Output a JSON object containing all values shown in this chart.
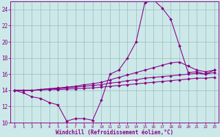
{
  "xlabel": "Windchill (Refroidissement éolien,°C)",
  "background_color": "#cce8e8",
  "line_color": "#880088",
  "grid_color": "#99bbbb",
  "xlim_min": -0.5,
  "xlim_max": 23.5,
  "ylim_min": 10,
  "ylim_max": 25,
  "yticks": [
    10,
    12,
    14,
    16,
    18,
    20,
    22,
    24
  ],
  "xticks": [
    0,
    1,
    2,
    3,
    4,
    5,
    6,
    7,
    8,
    9,
    10,
    11,
    12,
    13,
    14,
    15,
    16,
    17,
    18,
    19,
    20,
    21,
    22,
    23
  ],
  "curve_main_x": [
    0,
    1,
    2,
    3,
    4,
    5,
    6,
    7,
    8,
    9,
    10,
    11,
    12,
    13,
    14,
    15,
    16,
    17,
    18,
    19,
    20,
    21,
    22,
    23
  ],
  "curve_main_y": [
    14.0,
    13.7,
    13.2,
    13.0,
    12.5,
    12.2,
    10.2,
    10.5,
    10.5,
    10.3,
    12.8,
    16.0,
    16.5,
    18.0,
    20.0,
    24.8,
    25.2,
    24.2,
    22.8,
    19.5,
    16.2,
    16.3,
    16.0,
    16.5
  ],
  "curve_hi_x": [
    0,
    2,
    3,
    4,
    5,
    6,
    7,
    8,
    9,
    10,
    11,
    12,
    13,
    14,
    15,
    16,
    17,
    18,
    19,
    20,
    21,
    22,
    23
  ],
  "curve_hi_y": [
    14.0,
    14.0,
    14.1,
    14.2,
    14.3,
    14.4,
    14.5,
    14.7,
    14.8,
    15.0,
    15.3,
    15.6,
    15.9,
    16.2,
    16.5,
    16.8,
    17.1,
    17.4,
    17.5,
    17.0,
    16.5,
    16.3,
    16.5
  ],
  "curve_mid_x": [
    0,
    1,
    2,
    3,
    4,
    5,
    6,
    7,
    8,
    9,
    10,
    11,
    12,
    13,
    14,
    15,
    16,
    17,
    18,
    19,
    20,
    21,
    22,
    23
  ],
  "curve_mid_y": [
    14.0,
    14.0,
    14.0,
    14.1,
    14.2,
    14.2,
    14.3,
    14.4,
    14.5,
    14.6,
    14.7,
    14.9,
    15.0,
    15.2,
    15.3,
    15.5,
    15.6,
    15.7,
    15.8,
    15.9,
    16.0,
    16.1,
    16.0,
    16.2
  ],
  "curve_lo_x": [
    0,
    1,
    2,
    3,
    4,
    5,
    6,
    7,
    8,
    9,
    10,
    11,
    12,
    13,
    14,
    15,
    16,
    17,
    18,
    19,
    20,
    21,
    22,
    23
  ],
  "curve_lo_y": [
    14.0,
    14.0,
    14.0,
    14.05,
    14.1,
    14.1,
    14.15,
    14.2,
    14.25,
    14.3,
    14.4,
    14.5,
    14.6,
    14.7,
    14.8,
    14.9,
    15.0,
    15.1,
    15.2,
    15.3,
    15.4,
    15.5,
    15.5,
    15.6
  ]
}
